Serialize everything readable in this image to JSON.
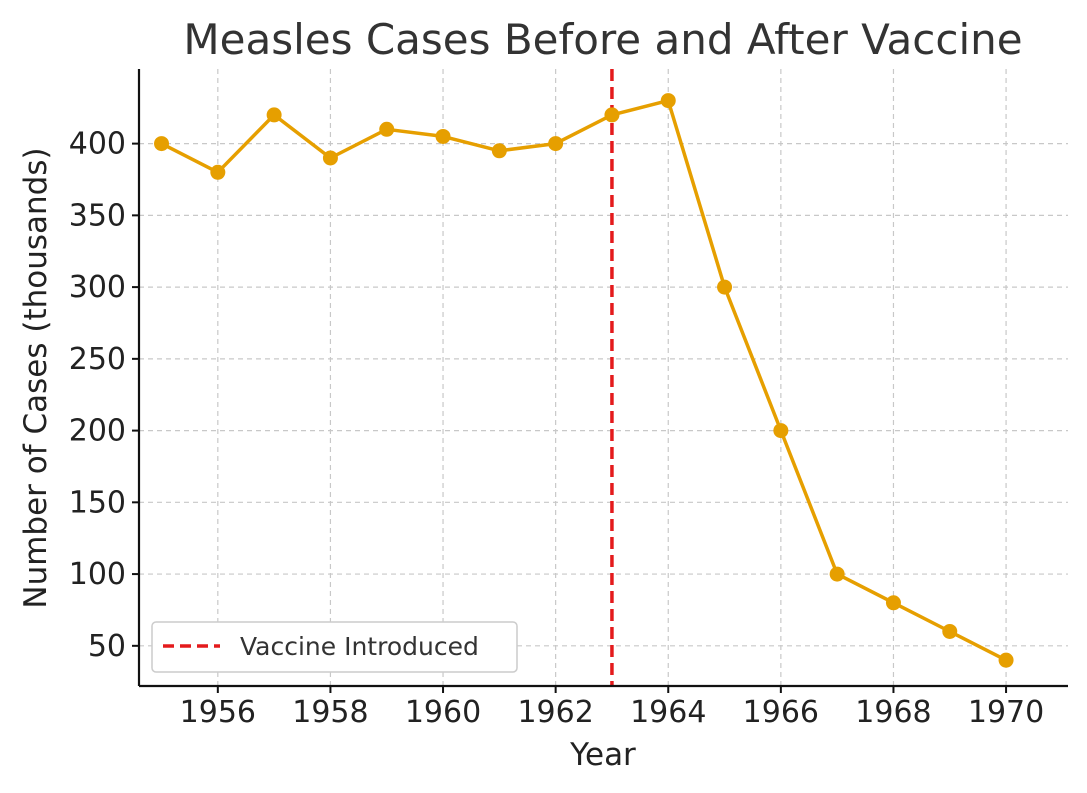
{
  "chart_data": {
    "type": "line",
    "title": "Measles Cases Before and After Vaccine",
    "xlabel": "Year",
    "ylabel": "Number of Cases (thousands)",
    "x": [
      1955,
      1956,
      1957,
      1958,
      1959,
      1960,
      1961,
      1962,
      1963,
      1964,
      1965,
      1966,
      1967,
      1968,
      1969,
      1970
    ],
    "series": [
      {
        "values": [
          400,
          380,
          420,
          390,
          410,
          405,
          395,
          400,
          420,
          430,
          300,
          200,
          100,
          80,
          60,
          40
        ],
        "color": "#E69F00",
        "marker": "circle"
      }
    ],
    "annotations": [
      {
        "type": "vline",
        "x": 1963,
        "label": "Vaccine Introduced",
        "color": "#E41A1C",
        "style": "dashed"
      }
    ],
    "xlim": [
      1954.6,
      1971.1
    ],
    "ylim": [
      22,
      452
    ],
    "xticks": [
      1956,
      1958,
      1960,
      1962,
      1964,
      1966,
      1968,
      1970
    ],
    "yticks": [
      50,
      100,
      150,
      200,
      250,
      300,
      350,
      400
    ],
    "grid": true,
    "legend": {
      "placement": "bottom-left",
      "entries": [
        "Vaccine Introduced"
      ]
    }
  }
}
